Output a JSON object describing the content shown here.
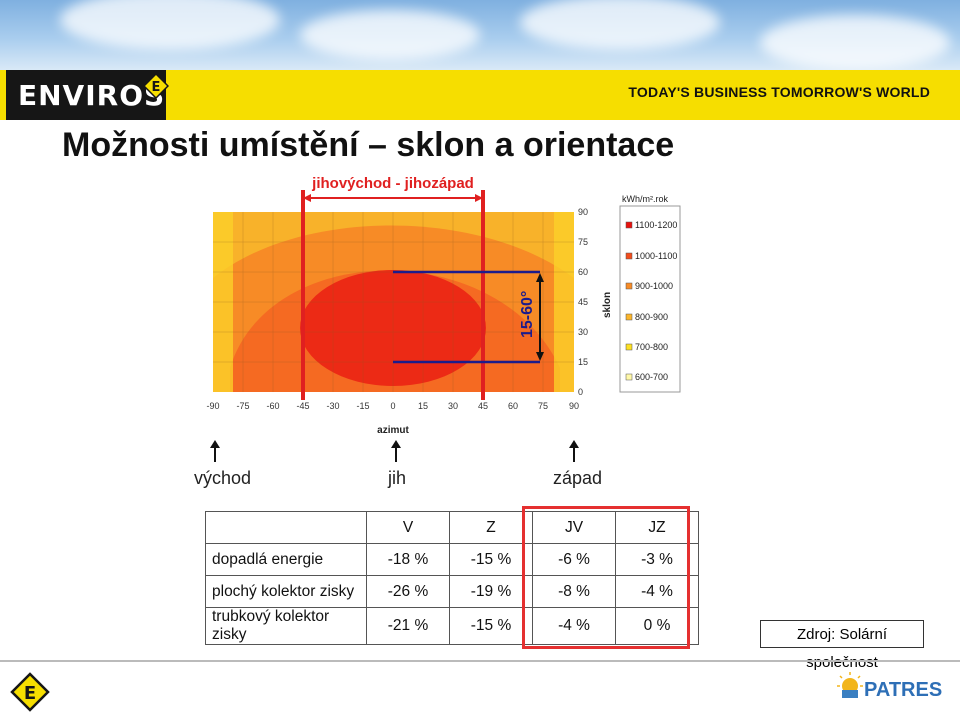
{
  "header": {
    "brand": "ENVIROS",
    "tagline": "TODAY'S BUSINESS TOMORROW'S WORLD"
  },
  "title": "Možnosti umístění – sklon a orientace",
  "chart": {
    "range_label": "jihovýchod - jihozápad",
    "tilt_label": "15-60°",
    "y_title": "sklon",
    "x_title": "azimut",
    "x_ticks": [
      "-90",
      "-75",
      "-60",
      "-45",
      "-30",
      "-15",
      "0",
      "15",
      "30",
      "45",
      "60",
      "75",
      "90"
    ],
    "y_ticks": [
      "90",
      "75",
      "60",
      "45",
      "30",
      "15",
      "0"
    ],
    "legend_title": "kWh/m².rok",
    "legend": [
      {
        "label": "1100-1200",
        "color": "#e8120e"
      },
      {
        "label": "1000-1100",
        "color": "#f24d1c"
      },
      {
        "label": "900-1000",
        "color": "#f78b26"
      },
      {
        "label": "800-900",
        "color": "#fbb52b"
      },
      {
        "label": "700-800",
        "color": "#fde023"
      },
      {
        "label": "600-700",
        "color": "#fff8a8"
      }
    ]
  },
  "directions": {
    "east": "východ",
    "south": "jih",
    "west": "západ"
  },
  "table": {
    "headers": [
      "",
      "V",
      "Z",
      "JV",
      "JZ"
    ],
    "rows": [
      {
        "label": "dopadlá energie",
        "values": [
          "-18 %",
          "-15 %",
          "-6 %",
          "-3 %"
        ]
      },
      {
        "label": "plochý kolektor zisky",
        "values": [
          "-26 %",
          "-19 %",
          "-8 %",
          "-4 %"
        ]
      },
      {
        "label": "trubkový kolektor zisky",
        "values": [
          "-21 %",
          "-15 %",
          "-4 %",
          "0 %"
        ]
      }
    ]
  },
  "source": "Zdroj: Solární společnost",
  "footer": {
    "partner": "PATRES"
  },
  "colors": {
    "banner": "#f6de00",
    "highlight": "#e53030",
    "tilt_marker": "#1c1c8c"
  }
}
